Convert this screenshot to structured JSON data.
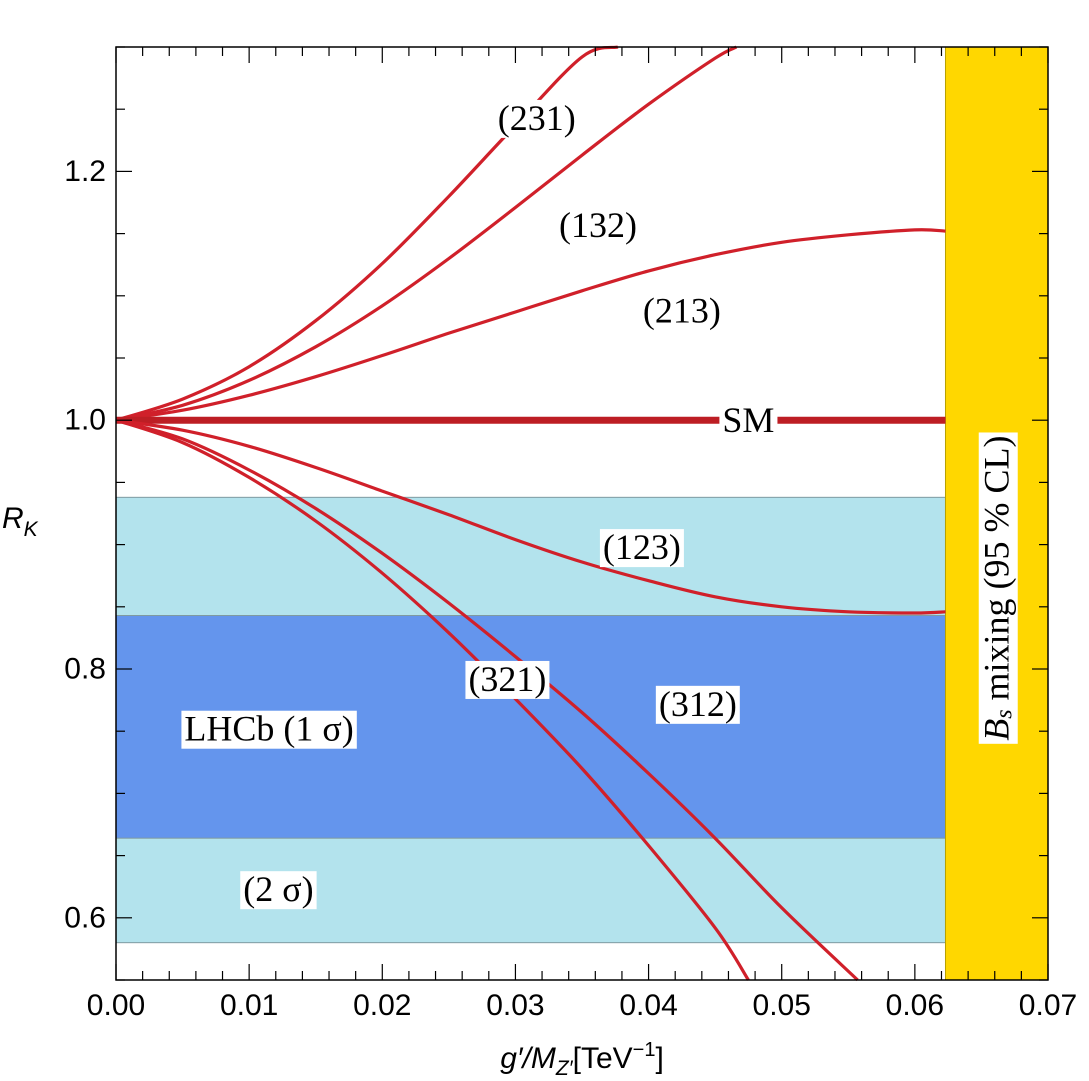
{
  "chart_data": {
    "type": "line",
    "xlabel": "g′/M",
    "xlabel_sub": "Z′",
    "xlabel_unit": "[TeV",
    "xlabel_unit_sup": "−1",
    "xlabel_unit_close": "]",
    "ylabel": "R",
    "ylabel_sub": "K",
    "xlim": [
      0.0,
      0.07
    ],
    "ylim": [
      0.55,
      1.3
    ],
    "x_ticks": [
      {
        "value": 0.0,
        "label": "0.00"
      },
      {
        "value": 0.01,
        "label": "0.01"
      },
      {
        "value": 0.02,
        "label": "0.02"
      },
      {
        "value": 0.03,
        "label": "0.03"
      },
      {
        "value": 0.04,
        "label": "0.04"
      },
      {
        "value": 0.05,
        "label": "0.05"
      },
      {
        "value": 0.06,
        "label": "0.06"
      },
      {
        "value": 0.07,
        "label": "0.07"
      }
    ],
    "y_ticks": [
      {
        "value": 0.6,
        "label": "0.6"
      },
      {
        "value": 0.8,
        "label": "0.8"
      },
      {
        "value": 1.0,
        "label": "1.0"
      },
      {
        "value": 1.2,
        "label": "1.2"
      }
    ],
    "bands": [
      {
        "name": "2sigma",
        "label": "(2 σ)",
        "y_range": [
          0.58,
          0.938
        ],
        "color": "#b3e3ed"
      },
      {
        "name": "1sigma",
        "label": "LHCb (1 σ)",
        "y_range": [
          0.664,
          0.843
        ],
        "color": "#6495ed"
      }
    ],
    "exclusion": {
      "label": "B",
      "label_sub": "s",
      "label_rest": " mixing  (95 % CL)",
      "x_range": [
        0.0623,
        0.07
      ],
      "color": "#ffd700"
    },
    "series": [
      {
        "name": "(231)",
        "label": "(231)",
        "label_at": [
          0.0316,
          1.243
        ],
        "x": [
          0.0,
          0.005,
          0.01,
          0.015,
          0.02,
          0.025,
          0.03,
          0.035,
          0.0377
        ],
        "y": [
          1.0,
          1.017,
          1.043,
          1.08,
          1.126,
          1.18,
          1.237,
          1.292,
          1.3
        ]
      },
      {
        "name": "(132)",
        "label": "(132)",
        "label_at": [
          0.0362,
          1.157
        ],
        "x": [
          0.0,
          0.005,
          0.01,
          0.015,
          0.02,
          0.025,
          0.03,
          0.035,
          0.04,
          0.045,
          0.0466
        ],
        "y": [
          1.0,
          1.012,
          1.032,
          1.059,
          1.092,
          1.13,
          1.171,
          1.213,
          1.254,
          1.291,
          1.3
        ]
      },
      {
        "name": "(213)",
        "label": "(213)",
        "label_at": [
          0.0425,
          1.088
        ],
        "x": [
          0.0,
          0.005,
          0.01,
          0.015,
          0.02,
          0.025,
          0.03,
          0.035,
          0.04,
          0.045,
          0.05,
          0.055,
          0.06,
          0.0623
        ],
        "y": [
          1.0,
          1.008,
          1.02,
          1.035,
          1.052,
          1.07,
          1.087,
          1.104,
          1.12,
          1.133,
          1.143,
          1.149,
          1.153,
          1.152
        ]
      },
      {
        "name": "SM",
        "label": "SM",
        "label_at": [
          0.0475,
          1.0
        ],
        "x": [
          0.0,
          0.0623
        ],
        "y": [
          1.0,
          1.0
        ]
      },
      {
        "name": "(123)",
        "label": "(123)",
        "label_at": [
          0.0395,
          0.898
        ],
        "x": [
          0.0,
          0.005,
          0.01,
          0.015,
          0.02,
          0.025,
          0.03,
          0.035,
          0.04,
          0.045,
          0.05,
          0.055,
          0.06,
          0.0623
        ],
        "y": [
          1.0,
          0.992,
          0.979,
          0.962,
          0.943,
          0.924,
          0.904,
          0.886,
          0.871,
          0.858,
          0.85,
          0.846,
          0.845,
          0.846
        ]
      },
      {
        "name": "(312)",
        "label": "(312)",
        "label_at": [
          0.0437,
          0.772
        ],
        "x": [
          0.0,
          0.005,
          0.01,
          0.015,
          0.02,
          0.025,
          0.03,
          0.035,
          0.04,
          0.045,
          0.05,
          0.0557
        ],
        "y": [
          1.0,
          0.985,
          0.96,
          0.929,
          0.893,
          0.853,
          0.81,
          0.765,
          0.716,
          0.664,
          0.608,
          0.55
        ]
      },
      {
        "name": "(321)",
        "label": "(321)",
        "label_at": [
          0.0294,
          0.792
        ],
        "x": [
          0.0,
          0.005,
          0.01,
          0.015,
          0.02,
          0.025,
          0.03,
          0.035,
          0.04,
          0.045,
          0.0475
        ],
        "y": [
          1.0,
          0.982,
          0.954,
          0.919,
          0.877,
          0.829,
          0.776,
          0.72,
          0.658,
          0.592,
          0.55
        ]
      }
    ]
  }
}
